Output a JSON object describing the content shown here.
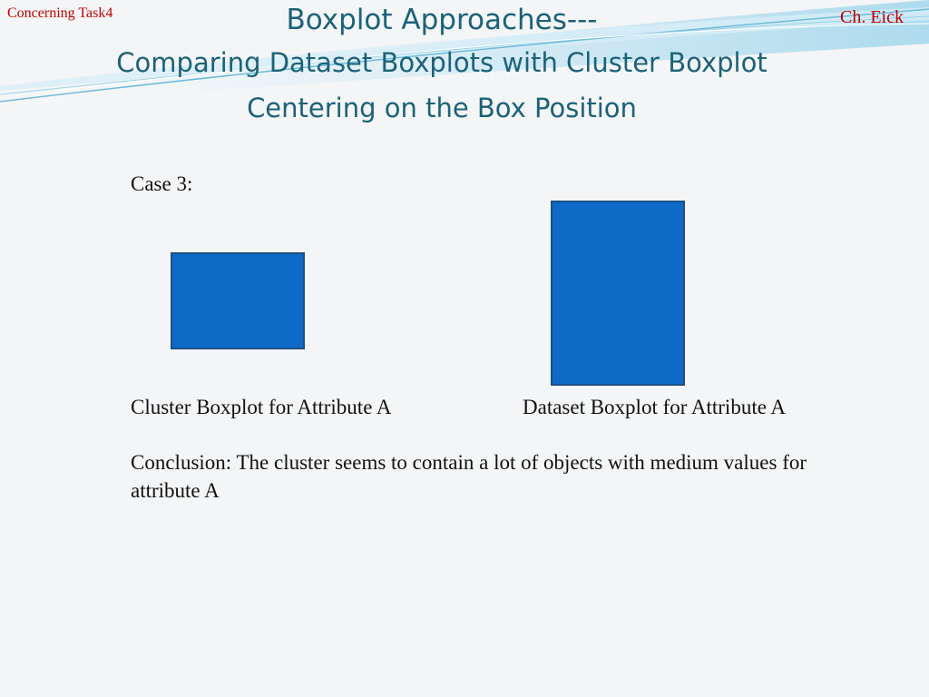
{
  "header": {
    "left_label": "Concerning Task4",
    "right_label": "Ch. Eick",
    "title_line1": "Boxplot Approaches---",
    "title_line2": "Comparing Dataset Boxplots with Cluster Boxplot",
    "title_line3": "Centering on the Box Position"
  },
  "content": {
    "case_label": "Case 3:",
    "cluster_caption": "Cluster Boxplot for Attribute A",
    "dataset_caption": "Dataset Boxplot for Attribute A",
    "conclusion": "Conclusion: The cluster seems to contain a lot of objects with medium values for attribute A"
  },
  "colors": {
    "box_fill": "#0d6ac7",
    "title": "#1b6279",
    "corner_text": "#c00000"
  }
}
